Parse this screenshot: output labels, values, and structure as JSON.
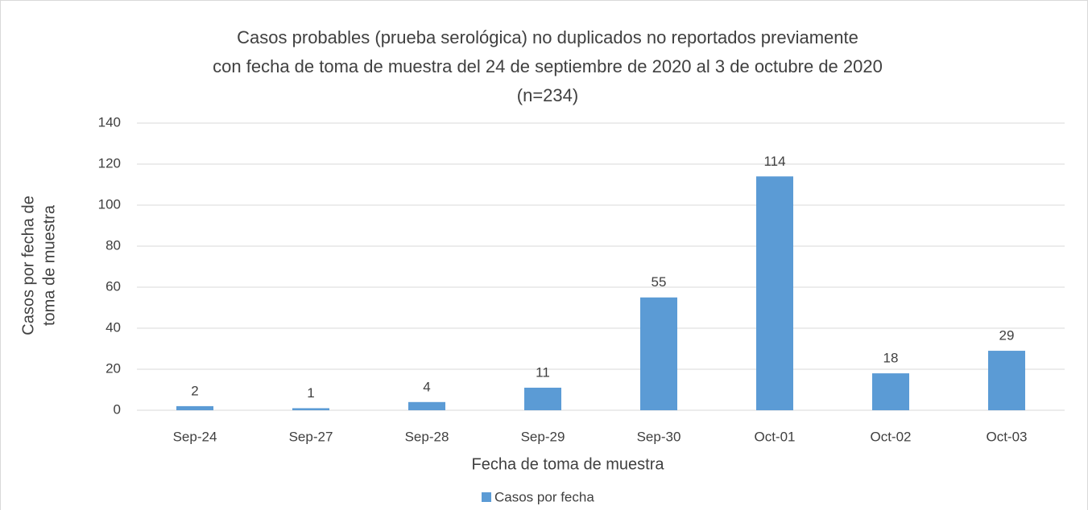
{
  "chart_data": {
    "type": "bar",
    "title": [
      "Casos probables (prueba serológica) no duplicados no reportados previamente",
      "con fecha de toma de muestra del  24 de septiembre de 2020 al 3 de octubre de 2020",
      "(n=234)"
    ],
    "x_label": "Fecha de toma de muestra",
    "y_label": [
      "Casos por fecha de",
      "toma de muestra"
    ],
    "categories": [
      "Sep-24",
      "Sep-27",
      "Sep-28",
      "Sep-29",
      "Sep-30",
      "Oct-01",
      "Oct-02",
      "Oct-03"
    ],
    "series": [
      {
        "name": "Casos por fecha",
        "color": "#5b9bd5",
        "values": [
          2,
          1,
          4,
          11,
          55,
          114,
          18,
          29
        ]
      }
    ],
    "ylim": [
      0,
      140
    ],
    "yticks": [
      0,
      20,
      40,
      60,
      80,
      100,
      120,
      140
    ],
    "grid": true,
    "legend": "bottom"
  }
}
